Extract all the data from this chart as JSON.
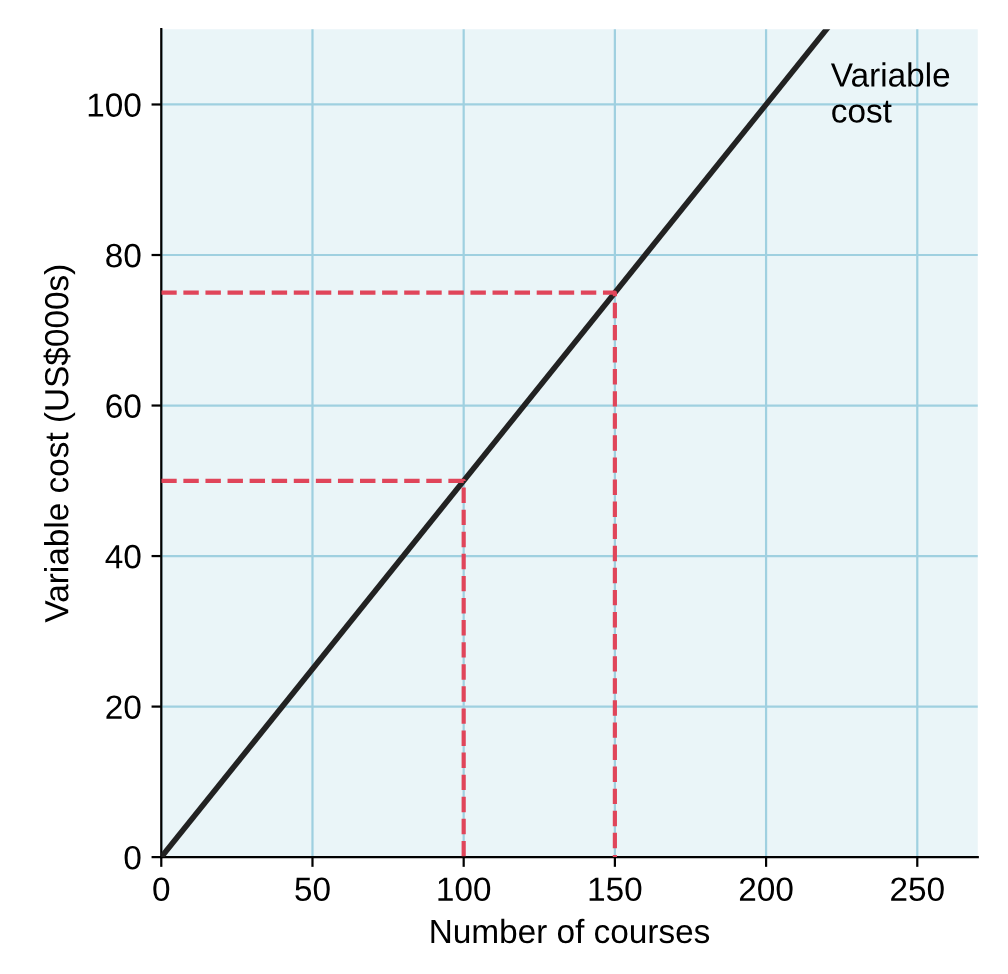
{
  "chart_data": {
    "type": "line",
    "xlabel": "Number of courses",
    "ylabel": "Variable cost (US$000s)",
    "xlim": [
      0,
      270
    ],
    "ylim": [
      0,
      110
    ],
    "xticks": [
      0,
      50,
      100,
      150,
      200,
      250
    ],
    "yticks": [
      0,
      20,
      40,
      60,
      80,
      100
    ],
    "grid": true,
    "marker": "none",
    "series": [
      {
        "x": [
          0,
          220
        ],
        "values": [
          0,
          110
        ],
        "color": "#222222",
        "line_style": "solid"
      },
      {
        "x": [
          0,
          100,
          100
        ],
        "values": [
          50,
          50,
          0
        ],
        "color": "#e0455a",
        "line_style": "dashed"
      },
      {
        "x": [
          0,
          150,
          150
        ],
        "values": [
          75,
          75,
          0
        ],
        "color": "#e0455a",
        "line_style": "dashed"
      }
    ],
    "annotations": [
      "Variable\ncost"
    ]
  }
}
